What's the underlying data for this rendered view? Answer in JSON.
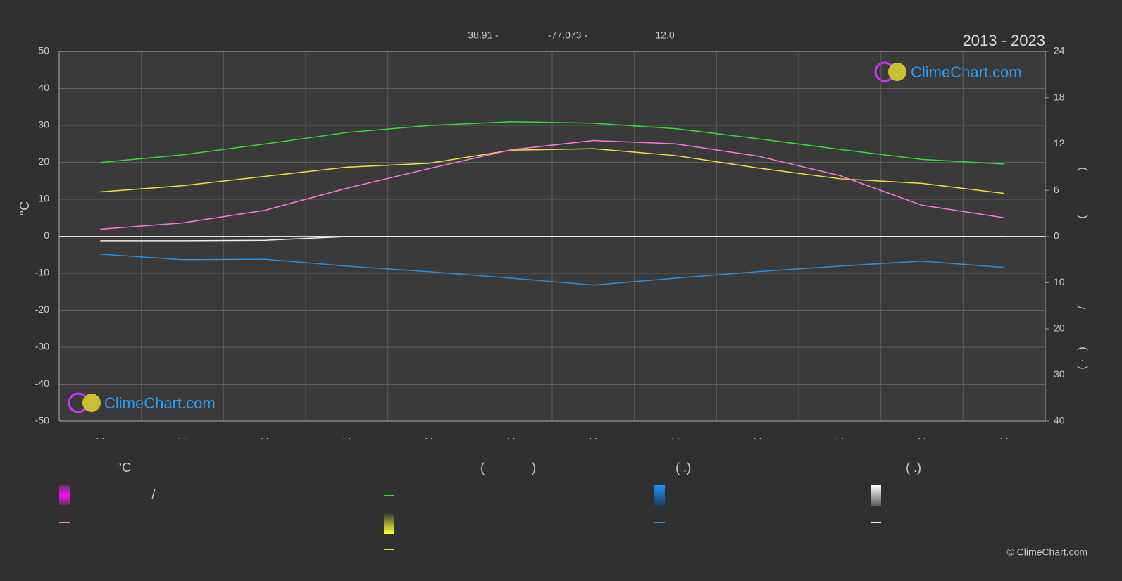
{
  "chart_data": {
    "type": "line",
    "title": "2013 - 2023",
    "header_texts": [
      "38.91 -",
      "-77.073 -",
      "12.0"
    ],
    "logo_text": "ClimeChart.com",
    "y_label": "°C",
    "y2_label_parts": [
      ")",
      "(",
      "/",
      ")",
      "·",
      "("
    ],
    "categories": [
      ". .",
      ". .",
      ". .",
      ". .",
      ". .",
      ". .",
      ". .",
      ". .",
      ". .",
      ". .",
      ". .",
      ". ."
    ],
    "ylim": [
      -50,
      50
    ],
    "yticks": [
      50,
      40,
      30,
      20,
      10,
      0,
      -10,
      -20,
      -30,
      -40,
      -50
    ],
    "y2lim": [
      0,
      24
    ],
    "y2ticks": [
      24,
      18,
      12,
      6,
      0
    ],
    "y3lim": [
      0,
      40
    ],
    "y3ticks": [
      10,
      20,
      30,
      40
    ],
    "grid": true,
    "series": [
      {
        "color": "#33dd33",
        "axis": "y2",
        "values": [
          9.6,
          10.6,
          12,
          13.5,
          14.4,
          14.9,
          14.7,
          14,
          12.7,
          11.3,
          10,
          9.4
        ]
      },
      {
        "color": "#f0e040",
        "axis": "y2",
        "values": [
          5.8,
          6.6,
          7.8,
          9,
          9.5,
          11.2,
          11.4,
          10.5,
          8.9,
          7.5,
          6.9,
          5.6
        ]
      },
      {
        "color": "#ff77dd",
        "axis": "y",
        "values": [
          1.9,
          3.6,
          7,
          13,
          18.3,
          23.4,
          25.9,
          25,
          21.7,
          16.4,
          8.4,
          5
        ]
      },
      {
        "color": "#2b8fe0",
        "axis": "y3",
        "values": [
          3.8,
          5,
          4.9,
          6.4,
          7.6,
          9,
          10.5,
          9,
          7.6,
          6.4,
          5.3,
          6.7
        ]
      },
      {
        "color": "#eeeeee",
        "axis": "y3",
        "values": [
          0.9,
          0.9,
          0.8,
          0,
          0,
          0,
          0,
          0,
          0,
          0,
          0,
          0
        ]
      }
    ]
  },
  "legend": {
    "headers": [
      "°C",
      "(",
      ")",
      "( .)",
      "( .)"
    ],
    "notes": [
      "/"
    ]
  },
  "copyright": "© ClimeChart.com"
}
